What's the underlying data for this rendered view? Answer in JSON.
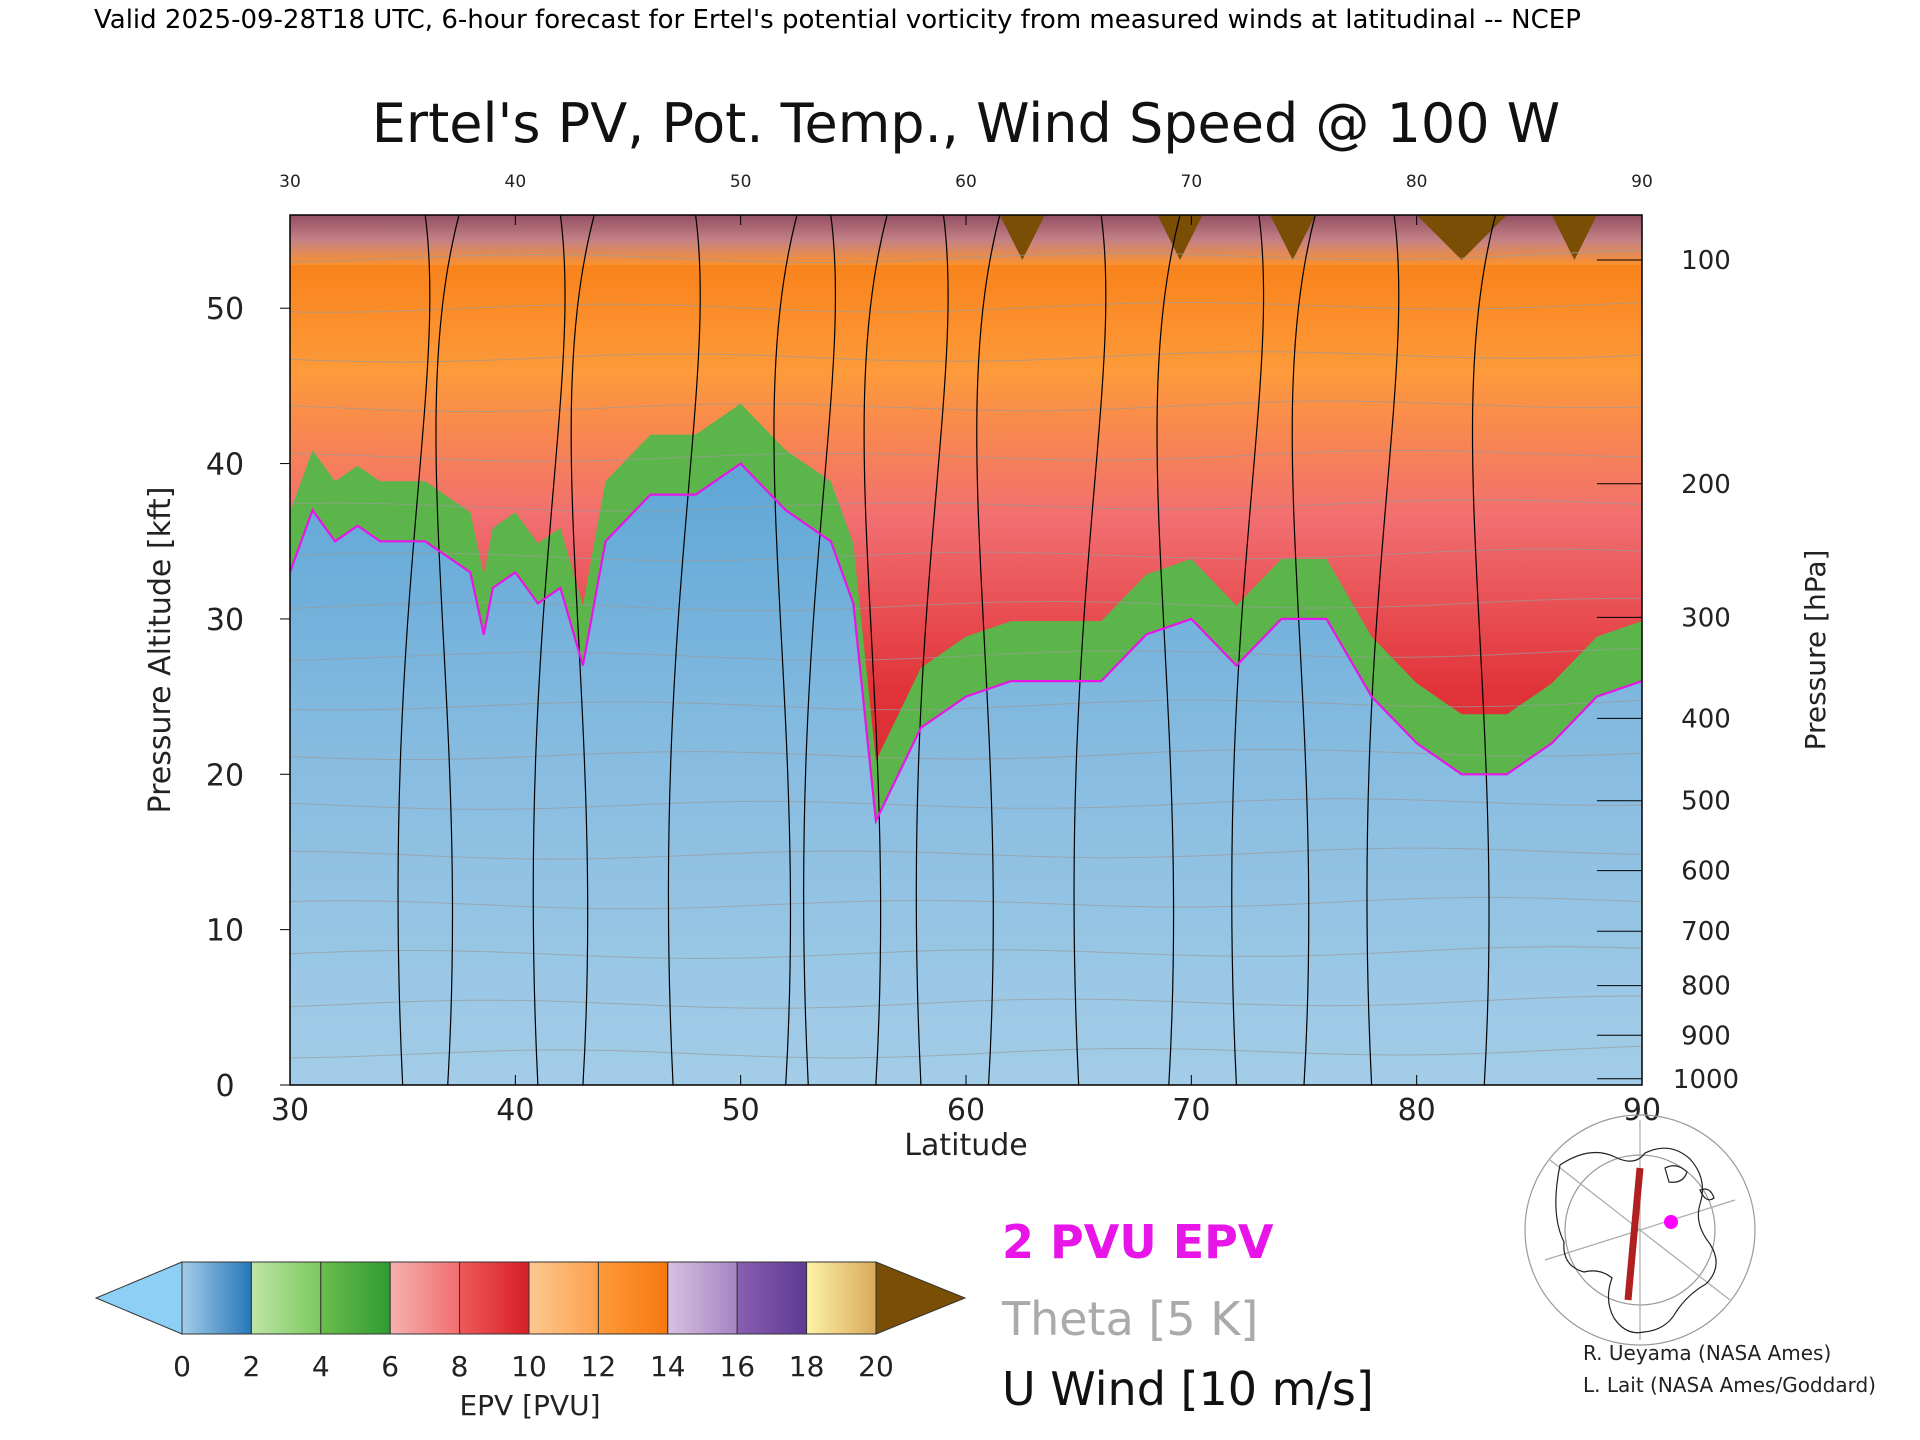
{
  "header": {
    "line": "Valid 2025-09-28T18 UTC, 6-hour forecast for Ertel's potential vorticity from measured winds at latitudinal -- NCEP"
  },
  "colors": {
    "below_min": "#8ed0f5",
    "above_max": "#7a4e05",
    "pv2_contour": "#e815e8",
    "theta_contour": "#9a9a9a",
    "wind_contour": "#000000",
    "transect": "#b02020",
    "location_marker": "#ff00ff"
  },
  "chart_data": {
    "type": "heatmap",
    "title": "Ertel's PV, Pot. Temp., Wind Speed @ 100 W",
    "xlabel": "Latitude",
    "ylabel": "Pressure Altitude [kft]",
    "y2label": "Pressure [hPa]",
    "xlim": [
      30,
      90
    ],
    "ylim": [
      0,
      56
    ],
    "x_ticks": [
      "30",
      "40",
      "50",
      "60",
      "70",
      "80",
      "90"
    ],
    "y_ticks": [
      "0",
      "10",
      "20",
      "30",
      "40",
      "50"
    ],
    "pressure_levels": [
      {
        "hpa": "100",
        "kft": 53.1
      },
      {
        "hpa": "200",
        "kft": 38.7
      },
      {
        "hpa": "300",
        "kft": 30.1
      },
      {
        "hpa": "400",
        "kft": 23.6
      },
      {
        "hpa": "500",
        "kft": 18.3
      },
      {
        "hpa": "600",
        "kft": 13.8
      },
      {
        "hpa": "700",
        "kft": 9.9
      },
      {
        "hpa": "800",
        "kft": 6.4
      },
      {
        "hpa": "900",
        "kft": 3.2
      },
      {
        "hpa": "1000",
        "kft": 0.4
      }
    ],
    "tropopause_2pvu": {
      "latitude": [
        30,
        31,
        32,
        33,
        34,
        36,
        38,
        38.6,
        39,
        40,
        41,
        42,
        43,
        44,
        46,
        48,
        50,
        52,
        54,
        55,
        56,
        57,
        58,
        60,
        62,
        64,
        66,
        68,
        70,
        72,
        74,
        76,
        78,
        80,
        82,
        84,
        86,
        88,
        90
      ],
      "kft": [
        33,
        37,
        35,
        36,
        35,
        35,
        33,
        29,
        32,
        33,
        31,
        32,
        27,
        35,
        38,
        38,
        40,
        37,
        35,
        31,
        17,
        20,
        23,
        25,
        26,
        26,
        26,
        29,
        30,
        27,
        30,
        30,
        25,
        22,
        20,
        20,
        22,
        25,
        26
      ]
    },
    "colorbar": {
      "label": "EPV [PVU]",
      "ticks": [
        "0",
        "2",
        "4",
        "6",
        "8",
        "10",
        "12",
        "14",
        "16",
        "18",
        "20"
      ],
      "bins": [
        {
          "from": 0,
          "to": 2,
          "colors": [
            "#a3cde8",
            "#2676b8"
          ]
        },
        {
          "from": 2,
          "to": 4,
          "colors": [
            "#bfe5a6",
            "#7bc85d"
          ]
        },
        {
          "from": 4,
          "to": 6,
          "colors": [
            "#6cbd4c",
            "#2f9b32"
          ]
        },
        {
          "from": 6,
          "to": 8,
          "colors": [
            "#f6b0b0",
            "#f16e70"
          ]
        },
        {
          "from": 8,
          "to": 10,
          "colors": [
            "#ef5a5a",
            "#d61e26"
          ]
        },
        {
          "from": 10,
          "to": 12,
          "colors": [
            "#fcc890",
            "#fda04d"
          ]
        },
        {
          "from": 12,
          "to": 14,
          "colors": [
            "#fd9a3a",
            "#f7780d"
          ]
        },
        {
          "from": 14,
          "to": 16,
          "colors": [
            "#d7c1e0",
            "#a783c3"
          ]
        },
        {
          "from": 16,
          "to": 18,
          "colors": [
            "#8a5eb0",
            "#5e3a92"
          ]
        },
        {
          "from": 18,
          "to": 20,
          "colors": [
            "#fdf3a6",
            "#d9a95a"
          ]
        }
      ]
    },
    "legend": [
      {
        "label": "2 PVU EPV",
        "color": "#e815e8"
      },
      {
        "label": "Theta [5 K]",
        "color": "#aaaaaa"
      },
      {
        "label": "U Wind [10 m/s]",
        "color": "#000000"
      }
    ],
    "grid": false
  },
  "credits": {
    "line1": "R. Ueyama (NASA Ames)",
    "line2": "L. Lait (NASA Ames/Goddard)"
  },
  "map_inset": {
    "transect_lon": "100 W",
    "icons": [
      "north-america-map",
      "transect-line",
      "location-dot"
    ]
  }
}
